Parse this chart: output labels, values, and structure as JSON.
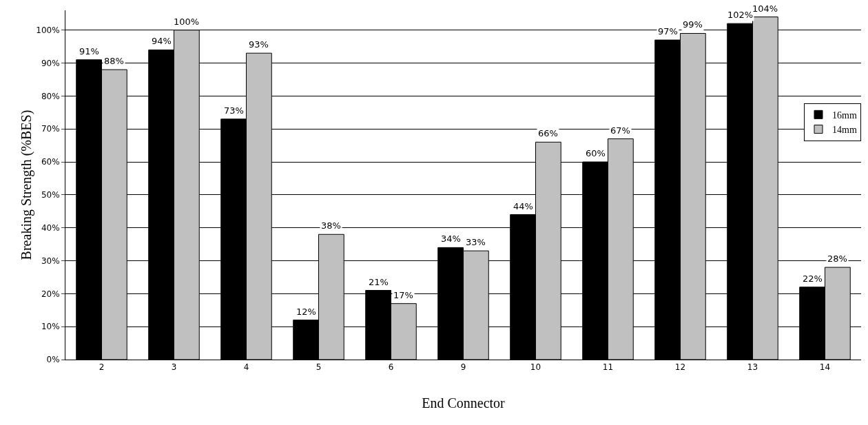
{
  "chart_data": {
    "type": "bar",
    "xlabel": "End Connector",
    "ylabel": "Breaking Strength (%BES)",
    "categories": [
      "2",
      "3",
      "4",
      "5",
      "6",
      "9",
      "10",
      "11",
      "12",
      "13",
      "14"
    ],
    "series": [
      {
        "name": "16mm",
        "color": "#000000",
        "values": [
          91,
          94,
          73,
          12,
          21,
          34,
          44,
          60,
          97,
          102,
          22
        ],
        "value_labels": [
          "91%",
          "94%",
          "73%",
          "12%",
          "21%",
          "34%",
          "44%",
          "60%",
          "97%",
          "102%",
          "22%"
        ]
      },
      {
        "name": "14mm",
        "color": "#c0c0c0",
        "values": [
          88,
          100,
          93,
          38,
          17,
          33,
          66,
          67,
          99,
          104,
          28
        ],
        "value_labels": [
          "88%",
          "100%",
          "93%",
          "38%",
          "17%",
          "33%",
          "66%",
          "67%",
          "99%",
          "104%",
          "28%"
        ]
      }
    ],
    "ylim": [
      0,
      106
    ],
    "yticks": [
      {
        "value": 0,
        "label": "0%"
      },
      {
        "value": 10,
        "label": "10%"
      },
      {
        "value": 20,
        "label": "20%"
      },
      {
        "value": 30,
        "label": "30%"
      },
      {
        "value": 40,
        "label": "40%"
      },
      {
        "value": 50,
        "label": "50%"
      },
      {
        "value": 60,
        "label": "60%"
      },
      {
        "value": 70,
        "label": "70%"
      },
      {
        "value": 80,
        "label": "80%"
      },
      {
        "value": 90,
        "label": "90%"
      },
      {
        "value": 100,
        "label": "100%"
      }
    ],
    "grid": "y",
    "legend": "right"
  }
}
